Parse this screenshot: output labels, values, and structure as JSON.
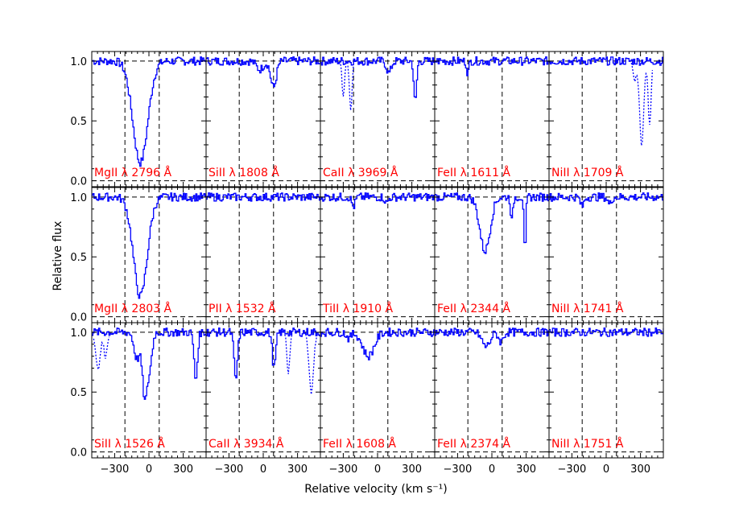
{
  "chart_data": {
    "type": "line",
    "xlabel": "Relative velocity (km s⁻¹)",
    "ylabel": "Relative flux",
    "xlim": [
      -500,
      500
    ],
    "ylim": [
      -0.05,
      1.08
    ],
    "x_ticks": [
      -300,
      0,
      300
    ],
    "y_ticks": [
      0.0,
      0.5,
      1.0
    ],
    "x_tick_labels": [
      "−300",
      "0",
      "300"
    ],
    "y_tick_labels": [
      "0.0",
      "0.5",
      "1.0"
    ],
    "continuum_level": 1.0,
    "zero_level": 0.0,
    "velocity_markers": [
      -210,
      90
    ],
    "grid": false,
    "colors": {
      "spectrum": "#0000ff",
      "label": "#ff0000",
      "guide": "#000000"
    },
    "panels": [
      {
        "label": "MgII λ 2796 Å",
        "absorptions": [
          {
            "v": -75,
            "depth": 0.85,
            "width": 65
          }
        ],
        "blends": []
      },
      {
        "label": "SiII λ 1808 Å",
        "absorptions": [
          {
            "v": 90,
            "depth": 0.22,
            "width": 25
          },
          {
            "v": -30,
            "depth": 0.07,
            "width": 30
          }
        ],
        "blends": []
      },
      {
        "label": "CaII λ 3969 Å",
        "absorptions": [
          {
            "v": 330,
            "depth": 0.35,
            "width": 12
          },
          {
            "v": 100,
            "depth": 0.1,
            "width": 20
          }
        ],
        "blends": [
          {
            "v": -300,
            "depth": 0.3,
            "width": 10
          },
          {
            "v": -235,
            "depth": 0.4,
            "width": 12
          }
        ]
      },
      {
        "label": "FeII λ 1611 Å",
        "absorptions": [
          {
            "v": -210,
            "depth": 0.1,
            "width": 10
          }
        ],
        "blends": []
      },
      {
        "label": "NiII λ 1709 Å",
        "absorptions": [],
        "blends": [
          {
            "v": 250,
            "depth": 0.15,
            "width": 15
          },
          {
            "v": 310,
            "depth": 0.7,
            "width": 18
          },
          {
            "v": 380,
            "depth": 0.55,
            "width": 12
          }
        ]
      },
      {
        "label": "MgII λ 2803 Å",
        "absorptions": [
          {
            "v": -75,
            "depth": 0.83,
            "width": 60
          }
        ],
        "blends": []
      },
      {
        "label": "PII λ 1532 Å",
        "absorptions": [],
        "blends": []
      },
      {
        "label": "TiII λ 1910 Å",
        "absorptions": [
          {
            "v": -210,
            "depth": 0.08,
            "width": 15
          },
          {
            "v": 80,
            "depth": 0.05,
            "width": 15
          }
        ],
        "blends": []
      },
      {
        "label": "FeII λ 2344 Å",
        "absorptions": [
          {
            "v": -60,
            "depth": 0.45,
            "width": 45
          },
          {
            "v": 290,
            "depth": 0.5,
            "width": 8
          },
          {
            "v": 175,
            "depth": 0.2,
            "width": 10
          }
        ],
        "blends": []
      },
      {
        "label": "NiII λ 1741 Å",
        "absorptions": [
          {
            "v": -210,
            "depth": 0.08,
            "width": 15
          },
          {
            "v": 30,
            "depth": 0.06,
            "width": 15
          }
        ],
        "blends": []
      },
      {
        "label": "SiII λ 1526 Å",
        "absorptions": [
          {
            "v": -35,
            "depth": 0.55,
            "width": 22
          },
          {
            "v": -105,
            "depth": 0.22,
            "width": 25
          },
          {
            "v": 410,
            "depth": 0.4,
            "width": 15
          },
          {
            "v": 10,
            "depth": 0.25,
            "width": 20
          }
        ],
        "blends": [
          {
            "v": -445,
            "depth": 0.3,
            "width": 20
          },
          {
            "v": -380,
            "depth": 0.2,
            "width": 15
          }
        ]
      },
      {
        "label": "CaII λ 3934 Å",
        "absorptions": [
          {
            "v": -240,
            "depth": 0.4,
            "width": 15
          },
          {
            "v": 95,
            "depth": 0.3,
            "width": 15
          }
        ],
        "blends": [
          {
            "v": 220,
            "depth": 0.35,
            "width": 12
          },
          {
            "v": 420,
            "depth": 0.5,
            "width": 20
          }
        ]
      },
      {
        "label": "FeII λ 1608 Å",
        "absorptions": [
          {
            "v": -80,
            "depth": 0.2,
            "width": 50
          },
          {
            "v": -250,
            "depth": 0.05,
            "width": 20
          }
        ],
        "blends": []
      },
      {
        "label": "FeII λ 2374 Å",
        "absorptions": [
          {
            "v": -50,
            "depth": 0.12,
            "width": 35
          },
          {
            "v": 80,
            "depth": 0.08,
            "width": 20
          }
        ],
        "blends": []
      },
      {
        "label": "NiII λ 1751 Å",
        "absorptions": [],
        "blends": []
      }
    ]
  }
}
